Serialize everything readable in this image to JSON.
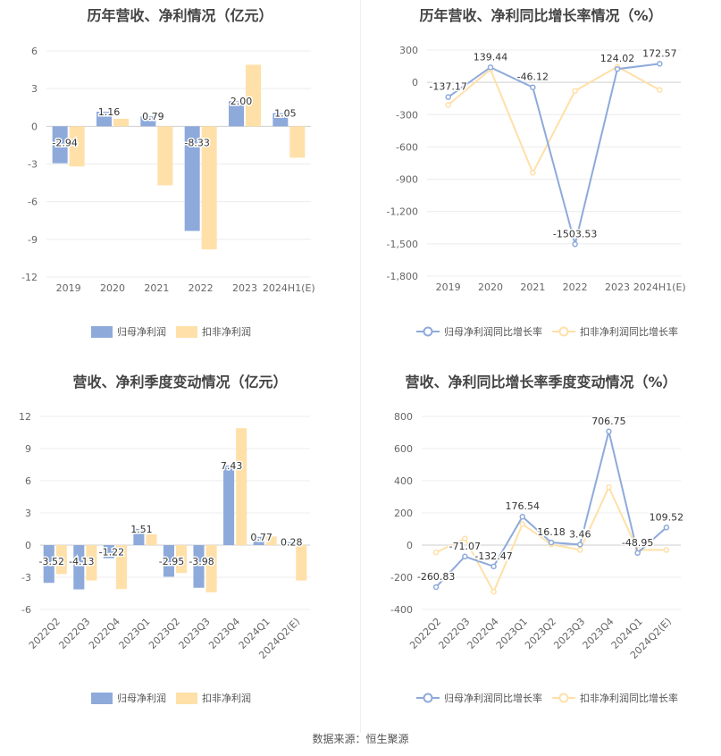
{
  "source": "数据来源：恒生聚源",
  "chart_data": [
    {
      "type": "bar",
      "title": "历年营收、净利情况（亿元）",
      "categories": [
        "2019",
        "2020",
        "2021",
        "2022",
        "2023",
        "2024H1(E)"
      ],
      "ylim": [
        -12,
        6
      ],
      "yticks": [
        6,
        3,
        0,
        -3,
        -6,
        -9,
        -12
      ],
      "series": [
        {
          "name": "归母净利润",
          "color": "#8eaadb",
          "values": [
            -2.94,
            1.16,
            0.79,
            -8.33,
            2.0,
            1.05
          ],
          "labels": [
            "-2.94",
            "1.16",
            "0.79",
            "-8.33",
            "2.00",
            "1.05"
          ]
        },
        {
          "name": "扣非净利润",
          "color": "#ffe0a8",
          "values": [
            -3.2,
            0.6,
            -4.7,
            -9.8,
            4.9,
            -2.5
          ]
        }
      ],
      "legend": "bottom",
      "grid": true
    },
    {
      "type": "line",
      "title": "历年营收、净利同比增长率情况（%）",
      "categories": [
        "2019",
        "2020",
        "2021",
        "2022",
        "2023",
        "2024H1(E)"
      ],
      "ylim": [
        -1800,
        300
      ],
      "yticks": [
        300,
        0,
        -300,
        -600,
        -900,
        -1200,
        -1500,
        -1800
      ],
      "ytick_labels": [
        "300",
        "0",
        "-300",
        "-600",
        "-900",
        "-1,200",
        "-1,500",
        "-1,800"
      ],
      "series": [
        {
          "name": "归母净利润同比增长率",
          "color": "#8eaadb",
          "values": [
            -137.17,
            139.44,
            -46.12,
            -1503.53,
            124.02,
            172.57
          ],
          "labels": [
            "-137.17",
            "139.44",
            "-46.12",
            "-1503.53",
            "124.02",
            "172.57"
          ]
        },
        {
          "name": "扣非净利润同比增长率",
          "color": "#ffe0a8",
          "values": [
            -210,
            120,
            -840,
            -80,
            145,
            -70
          ]
        }
      ],
      "legend": "bottom",
      "grid": true
    },
    {
      "type": "bar",
      "title": "营收、净利季度变动情况（亿元）",
      "categories": [
        "2022Q2",
        "2022Q3",
        "2022Q4",
        "2023Q1",
        "2023Q2",
        "2023Q3",
        "2023Q4",
        "2024Q1",
        "2024Q2(E)"
      ],
      "ylim": [
        -6,
        12
      ],
      "yticks": [
        12,
        9,
        6,
        3,
        0,
        -3,
        -6
      ],
      "series": [
        {
          "name": "归母净利润",
          "color": "#8eaadb",
          "values": [
            -3.52,
            -4.13,
            -1.22,
            1.51,
            -2.95,
            -3.98,
            7.43,
            0.77,
            0.28
          ],
          "labels": [
            "-3.52",
            "-4.13",
            "-1.22",
            "1.51",
            "-2.95",
            "-3.98",
            "7.43",
            "0.77",
            "0.28"
          ]
        },
        {
          "name": "扣非净利润",
          "color": "#ffe0a8",
          "values": [
            -2.7,
            -3.3,
            -4.1,
            1.0,
            -2.6,
            -4.4,
            10.9,
            0.8,
            -3.3
          ]
        }
      ],
      "legend": "bottom",
      "grid": true
    },
    {
      "type": "line",
      "title": "营收、净利同比增长率季度变动情况（%）",
      "categories": [
        "2022Q2",
        "2022Q3",
        "2022Q4",
        "2023Q1",
        "2023Q2",
        "2023Q3",
        "2023Q4",
        "2024Q1",
        "2024Q2(E)"
      ],
      "ylim": [
        -400,
        800
      ],
      "yticks": [
        800,
        600,
        400,
        200,
        0,
        -200,
        -400
      ],
      "series": [
        {
          "name": "归母净利润同比增长率",
          "color": "#8eaadb",
          "values": [
            -260.83,
            -71.07,
            -132.47,
            176.54,
            16.18,
            3.46,
            706.75,
            -48.95,
            109.52
          ],
          "labels": [
            "-260.83",
            "-71.07",
            "-132.47",
            "176.54",
            "16.18",
            "3.46",
            "706.75",
            "-48.95",
            "109.52"
          ]
        },
        {
          "name": "扣非净利润同比增长率",
          "color": "#ffe0a8",
          "values": [
            -45,
            40,
            -290,
            130,
            5,
            -30,
            360,
            -30,
            -30
          ]
        }
      ],
      "legend": "bottom",
      "grid": true
    }
  ]
}
